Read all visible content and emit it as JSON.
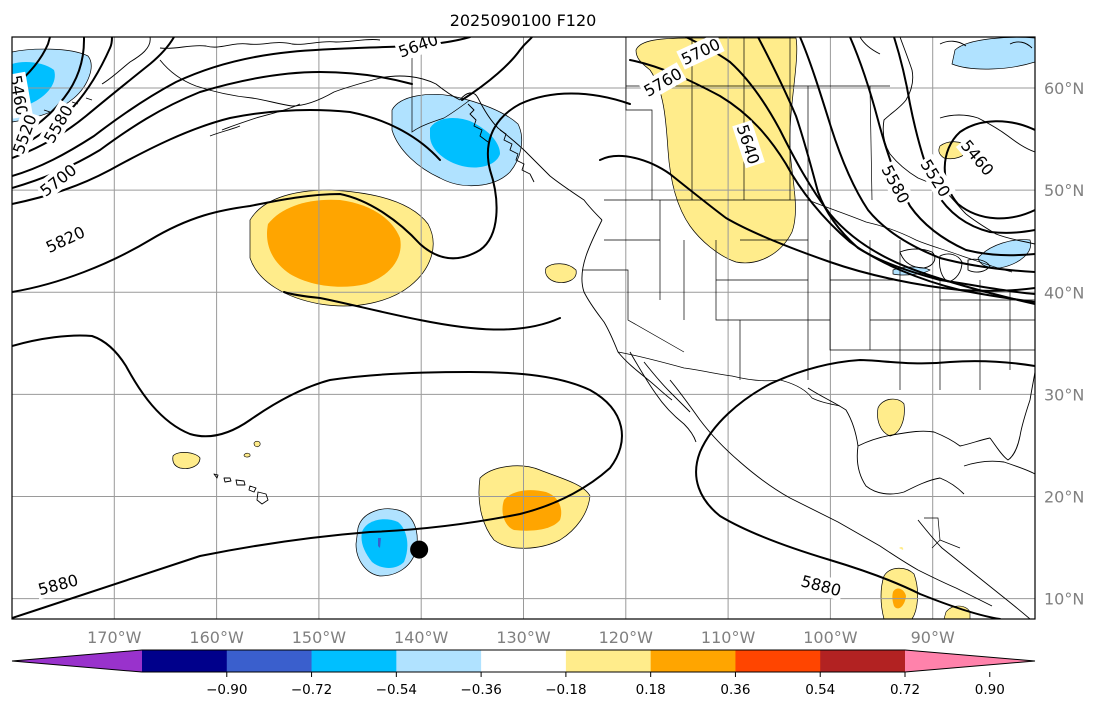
{
  "title": "2025090100 F120",
  "map": {
    "lon_range": [
      -180,
      -80
    ],
    "lat_range": [
      8,
      65
    ],
    "lon_ticks": [
      {
        "value": -170,
        "label": "170°W"
      },
      {
        "value": -160,
        "label": "160°W"
      },
      {
        "value": -150,
        "label": "150°W"
      },
      {
        "value": -140,
        "label": "140°W"
      },
      {
        "value": -130,
        "label": "130°W"
      },
      {
        "value": -120,
        "label": "120°W"
      },
      {
        "value": -110,
        "label": "110°W"
      },
      {
        "value": -100,
        "label": "100°W"
      },
      {
        "value": -90,
        "label": "90°W"
      }
    ],
    "lat_ticks": [
      {
        "value": 10,
        "label": "10°N"
      },
      {
        "value": 20,
        "label": "20°N"
      },
      {
        "value": 30,
        "label": "30°N"
      },
      {
        "value": 40,
        "label": "40°N"
      },
      {
        "value": 50,
        "label": "50°N"
      },
      {
        "value": 60,
        "label": "60°N"
      }
    ],
    "contour_labels": [
      {
        "text": "5460",
        "lon": -179.3,
        "lat": 59.3,
        "angle": 80
      },
      {
        "text": "5520",
        "lon": -178.8,
        "lat": 55.5,
        "angle": -70
      },
      {
        "text": "5580",
        "lon": -175.5,
        "lat": 56.5,
        "angle": -60
      },
      {
        "text": "5700",
        "lon": -175.5,
        "lat": 51.0,
        "angle": -38
      },
      {
        "text": "5820",
        "lon": -174.8,
        "lat": 45.2,
        "angle": -25
      },
      {
        "text": "5880",
        "lon": -175.5,
        "lat": 11.4,
        "angle": -15
      },
      {
        "text": "5880",
        "lon": -100.9,
        "lat": 11.3,
        "angle": 15
      },
      {
        "text": "5640",
        "lon": -140.3,
        "lat": 64.2,
        "angle": -20
      },
      {
        "text": "5700",
        "lon": -112.7,
        "lat": 63.6,
        "angle": -25
      },
      {
        "text": "5760",
        "lon": -116.4,
        "lat": 60.6,
        "angle": -30
      },
      {
        "text": "5640",
        "lon": -108.0,
        "lat": 54.5,
        "angle": 72
      },
      {
        "text": "5580",
        "lon": -93.6,
        "lat": 50.6,
        "angle": 62
      },
      {
        "text": "5520",
        "lon": -89.7,
        "lat": 51.2,
        "angle": 58
      },
      {
        "text": "5460",
        "lon": -85.6,
        "lat": 53.2,
        "angle": 50
      }
    ],
    "storm_marker": {
      "lon": -140.2,
      "lat": 14.8
    }
  },
  "colorbar": {
    "colors": [
      "#9932cc",
      "#00008b",
      "#3a5fcd",
      "#00bfff",
      "#b0e2ff",
      "#ffffff",
      "#ffec8b",
      "#ffa500",
      "#ff4500",
      "#b22222",
      "#ff82ab"
    ],
    "ticks": [
      "−0.90",
      "−0.72",
      "−0.54",
      "−0.36",
      "−0.18",
      "0.18",
      "0.36",
      "0.54",
      "0.72",
      "0.90"
    ]
  }
}
